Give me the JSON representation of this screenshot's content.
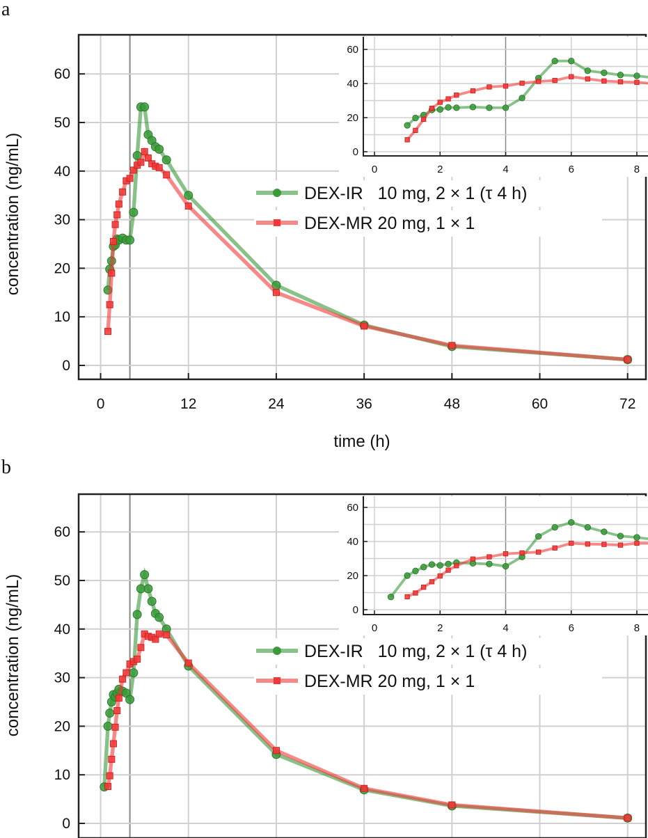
{
  "chart_data": [
    {
      "panel_label": "a",
      "type": "line",
      "xlabel": "time (h)",
      "ylabel": "concentration (ng/mL)",
      "xlim": [
        -3,
        74.5
      ],
      "ylim": [
        -2.9,
        68
      ],
      "xticks": [
        0,
        12,
        24,
        36,
        48,
        60,
        72
      ],
      "yticks": [
        0,
        10,
        20,
        30,
        40,
        50,
        60
      ],
      "grid": true,
      "legend": "center-right",
      "inset": {
        "xlim": [
          -0.34,
          8.34
        ],
        "ylim": [
          -2.4,
          66.5
        ],
        "xticks": [
          0,
          2,
          4,
          6,
          8
        ],
        "yticks": [
          0,
          20,
          40,
          60
        ]
      },
      "series": [
        {
          "name": "DEX-IR   10 mg, 2 × 1 (τ 4 h)",
          "color": "#3a9a3a",
          "marker": "circle",
          "x": [
            1,
            1.25,
            1.5,
            1.75,
            2,
            2.25,
            2.5,
            3,
            3.5,
            4,
            4.5,
            5,
            5.5,
            6,
            6.5,
            7,
            7.5,
            8,
            9,
            12,
            24,
            36,
            48,
            72
          ],
          "y": [
            15.5,
            19.8,
            21.5,
            24.5,
            24.8,
            26,
            25.8,
            26.2,
            25.8,
            25.8,
            31.5,
            43.2,
            53.2,
            53.2,
            47.5,
            46.3,
            45,
            44.5,
            42.3,
            35,
            16.5,
            8.3,
            3.9,
            1.2
          ]
        },
        {
          "name": "DEX-MR 20 mg, 1 × 1",
          "color": "#f03838",
          "marker": "square",
          "x": [
            1,
            1.25,
            1.5,
            1.75,
            2,
            2.25,
            2.5,
            3,
            3.5,
            4,
            4.5,
            5,
            5.5,
            6,
            6.5,
            7,
            7.5,
            8,
            9,
            12,
            24,
            36,
            48,
            72
          ],
          "y": [
            7,
            12.5,
            19,
            25.5,
            29,
            31,
            33.2,
            35.7,
            38,
            38.5,
            40.2,
            41.2,
            41.8,
            44,
            42.7,
            41.5,
            41,
            40.7,
            39.2,
            32.8,
            15,
            8.1,
            4.1,
            1.2
          ]
        }
      ]
    },
    {
      "panel_label": "b",
      "type": "line",
      "xlabel": "",
      "ylabel": "concentration (ng/mL)",
      "xlim": [
        -3,
        74.5
      ],
      "ylim": [
        -2.9,
        68
      ],
      "xticks": [],
      "yticks": [
        0,
        10,
        20,
        30,
        40,
        50,
        60
      ],
      "grid": true,
      "legend": "center-right",
      "inset": {
        "xlim": [
          -0.34,
          8.34
        ],
        "ylim": [
          -2.4,
          66.5
        ],
        "xticks": [
          0,
          2,
          4,
          6,
          8
        ],
        "yticks": [
          0,
          20,
          40,
          60
        ]
      },
      "series": [
        {
          "name": "DEX-IR   10 mg, 2 × 1 (τ 4 h)",
          "color": "#3a9a3a",
          "marker": "circle",
          "x": [
            0.5,
            1,
            1.25,
            1.5,
            1.75,
            2,
            2.25,
            2.5,
            3,
            3.5,
            4,
            4.5,
            5,
            5.5,
            6,
            6.5,
            7,
            7.5,
            8,
            9,
            12,
            24,
            36,
            48,
            72
          ],
          "y": [
            7.5,
            20,
            22.7,
            25,
            26.5,
            26,
            26.8,
            27.6,
            27.2,
            26.8,
            25.5,
            31,
            43,
            48.3,
            51.2,
            48.3,
            45.7,
            43.2,
            42.4,
            40,
            32.4,
            14.2,
            6.9,
            3.6,
            1.1
          ]
        },
        {
          "name": "DEX-MR 20 mg, 1 × 1",
          "color": "#f03838",
          "marker": "square",
          "x": [
            1,
            1.25,
            1.5,
            1.75,
            2,
            2.25,
            2.5,
            3,
            3.5,
            4,
            4.5,
            5,
            5.5,
            6,
            6.5,
            7,
            7.5,
            8,
            9,
            12,
            24,
            36,
            48,
            72
          ],
          "y": [
            7.6,
            9.8,
            13.2,
            16.4,
            19.8,
            23.2,
            25.8,
            29.7,
            31,
            32.8,
            33.3,
            33.8,
            36.2,
            39,
            38.5,
            38.3,
            37.9,
            39,
            38.8,
            33,
            15,
            7.2,
            3.8,
            1.1
          ]
        }
      ]
    }
  ]
}
